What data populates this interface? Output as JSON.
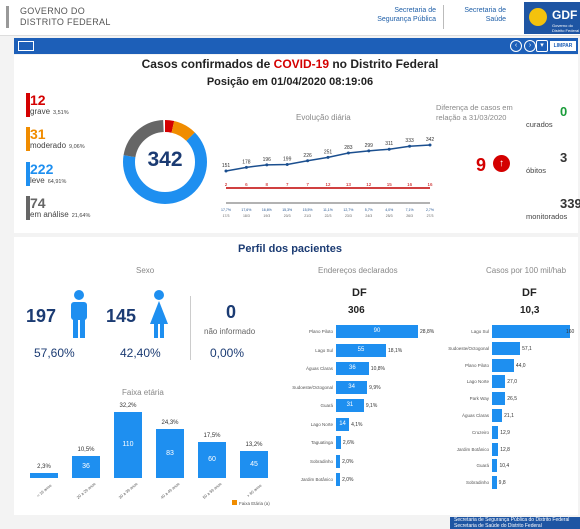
{
  "header": {
    "gov_line1": "GOVERNO DO",
    "gov_line2": "DISTRITO FEDERAL",
    "link1_l1": "Secretaria de",
    "link1_l2": "Segurança Pública",
    "link2_l1": "Secretaria de",
    "link2_l2": "Saúde",
    "brand": "GDF",
    "brand_sub": "Governo do Distrito Federal"
  },
  "nav": {
    "limpar": "LIMPAR"
  },
  "title": {
    "prefix": "Casos confirmados de ",
    "covid": "COVID-19",
    "suffix": " no Distrito Federal",
    "position": "Posição em 01/04/2020 08:19:06"
  },
  "severity": [
    {
      "num": "12",
      "label": "grave",
      "pct": "3,51%",
      "color": "#d40000"
    },
    {
      "num": "31",
      "label": "moderado",
      "pct": "9,06%",
      "color": "#f08c00"
    },
    {
      "num": "222",
      "label": "leve",
      "pct": "64,91%",
      "color": "#1e8ff0"
    },
    {
      "num": "74",
      "label": "em análise",
      "pct": "21,64%",
      "color": "#666666"
    }
  ],
  "donut": {
    "total": "342",
    "fractions": [
      0.0351,
      0.0906,
      0.6491,
      0.2164
    ]
  },
  "evolucao": {
    "title": "Evolução diária",
    "cases": [
      "151",
      "178",
      "196",
      "199",
      "226",
      "251",
      "283",
      "299",
      "311",
      "333",
      "342"
    ],
    "deaths": [
      "2",
      "6",
      "8",
      "7",
      "7",
      "12",
      "13",
      "12",
      "15",
      "16",
      "16"
    ],
    "dates": [
      "17/3",
      "18/3",
      "19/3",
      "20/3",
      "21/3",
      "22/3",
      "23/3",
      "24/3",
      "25/3",
      "26/3",
      "27/3"
    ],
    "mid": [
      "17,7%",
      "17,6%",
      "16,6%",
      "15,3%",
      "15,5%",
      "11,1%",
      "12,7%",
      "5,7%",
      "4,0%",
      "7,1%",
      "2,7%"
    ]
  },
  "diferenca": {
    "title_l1": "Diferença de casos em",
    "title_l2": "relação a 31/03/2020",
    "value": "9"
  },
  "right_stats": [
    {
      "num": "0",
      "label": "curados",
      "color": "#1a9c3a"
    },
    {
      "num": "3",
      "label": "óbitos",
      "color": "#333333"
    },
    {
      "num": "339",
      "label": "monitorados",
      "color": "#333333"
    }
  ],
  "perfil": {
    "title": "Perfil dos pacientes"
  },
  "sexo": {
    "title": "Sexo",
    "male_num": "197",
    "male_pct": "57,60%",
    "female_num": "145",
    "female_pct": "42,40%",
    "other_num": "0",
    "other_label": "não informado",
    "other_pct": "0,00%"
  },
  "enderecos": {
    "title": "Endereços declarados",
    "region": "DF",
    "total": "306",
    "rows": [
      {
        "label": "Plano Piloto",
        "value": "90",
        "pct": "28,8%",
        "frac": 1.0
      },
      {
        "label": "Lago Sul",
        "value": "55",
        "pct": "18,1%",
        "frac": 0.61
      },
      {
        "label": "Águas Claras",
        "value": "36",
        "pct": "10,8%",
        "frac": 0.4
      },
      {
        "label": "Sudoeste/Octogonal",
        "value": "34",
        "pct": "9,9%",
        "frac": 0.38
      },
      {
        "label": "Guará",
        "value": "31",
        "pct": "9,1%",
        "frac": 0.34
      },
      {
        "label": "Lago Norte",
        "value": "14",
        "pct": "4,1%",
        "frac": 0.16
      },
      {
        "label": "Taguatinga",
        "value": "",
        "pct": "2,6%",
        "frac": 0.06
      },
      {
        "label": "Sobradinho",
        "value": "",
        "pct": "2,0%",
        "frac": 0.05
      },
      {
        "label": "Jardim Botânico",
        "value": "",
        "pct": "2,0%",
        "frac": 0.05
      }
    ]
  },
  "casos100": {
    "title": "Casos por 100 mil/hab",
    "region": "DF",
    "total": "10,3",
    "rows": [
      {
        "label": "Lago Sul",
        "value": "",
        "extra": "160",
        "frac": 1.0
      },
      {
        "label": "Sudoeste/Octogonal",
        "value": "",
        "extra": "57,1",
        "frac": 0.36
      },
      {
        "label": "Plano Piloto",
        "value": "",
        "extra": "44,0",
        "frac": 0.28
      },
      {
        "label": "Lago Norte",
        "value": "",
        "extra": "27,0",
        "frac": 0.17
      },
      {
        "label": "Park Way",
        "value": "",
        "extra": "26,5",
        "frac": 0.17
      },
      {
        "label": "Águas Claras",
        "value": "",
        "extra": "21,1",
        "frac": 0.13
      },
      {
        "label": "Cruzeiro",
        "value": "",
        "extra": "12,9",
        "frac": 0.08
      },
      {
        "label": "Jardim Botânico",
        "value": "",
        "extra": "12,8",
        "frac": 0.08
      },
      {
        "label": "Guará",
        "value": "",
        "extra": "10,4",
        "frac": 0.07
      },
      {
        "label": "Sobradinho",
        "value": "",
        "extra": "9,8",
        "frac": 0.06
      }
    ]
  },
  "faixa": {
    "title": "Faixa etária",
    "bars": [
      {
        "label": "< 19 anos",
        "value": "",
        "pct": "2,3%",
        "frac": 0.07
      },
      {
        "label": "20 a 29 anos",
        "value": "36",
        "pct": "10,5%",
        "frac": 0.33
      },
      {
        "label": "30 a 39 anos",
        "value": "110",
        "pct": "32,2%",
        "frac": 1.0
      },
      {
        "label": "40 a 49 anos",
        "value": "83",
        "pct": "24,3%",
        "frac": 0.75
      },
      {
        "label": "50 a 59 anos",
        "value": "60",
        "pct": "17,5%",
        "frac": 0.55
      },
      {
        "label": "> 60 anos",
        "value": "45",
        "pct": "13,2%",
        "frac": 0.41
      }
    ],
    "legend": "Faixa Etária (a)"
  },
  "footer": {
    "line1": "Secretaria de Segurança Pública do Distrito Federal",
    "line2": "Secretaria de Saúde do Distrito Federal"
  }
}
